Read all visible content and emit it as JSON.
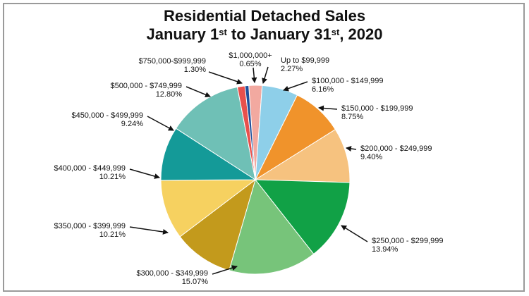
{
  "title_line1": "Residential Detached Sales",
  "title_line2": {
    "part1": "January 1",
    "sup1": "st",
    "part2": " to January 31",
    "sup2": "st",
    "part3": ", 2020"
  },
  "chart_data": {
    "type": "pie",
    "title": "Residential Detached Sales January 1st to January 31st, 2020",
    "slices": [
      {
        "label": "Up to $99,999",
        "value": 2.27,
        "display": "2.27%",
        "color": "#f2a9a0"
      },
      {
        "label": "$100,000 - $149,999",
        "value": 6.16,
        "display": "6.16%",
        "color": "#8ecfe9"
      },
      {
        "label": "$150,000 - $199,999",
        "value": 8.75,
        "display": "8.75%",
        "color": "#f0932b"
      },
      {
        "label": "$200,000 - $249,999",
        "value": 9.4,
        "display": "9.40%",
        "color": "#f6c27f"
      },
      {
        "label": "$250,000 - $299,999",
        "value": 13.94,
        "display": "13.94%",
        "color": "#11a146"
      },
      {
        "label": "$300,000 - $349,999",
        "value": 15.07,
        "display": "15.07%",
        "color": "#77c47a"
      },
      {
        "label": "$350,000 - $399,999",
        "value": 10.21,
        "display": "10.21%",
        "color": "#c39a1c"
      },
      {
        "label": "$400,000 - $449,999",
        "value": 10.21,
        "display": "10.21%",
        "color": "#f6d160"
      },
      {
        "label": "$450,000 - $499,999",
        "value": 9.24,
        "display": "9.24%",
        "color": "#149a98"
      },
      {
        "label": "$500,000 - $749,999",
        "value": 12.8,
        "display": "12.80%",
        "color": "#6fc0b6"
      },
      {
        "label": "$750,000-$999,999",
        "value": 1.3,
        "display": "1.30%",
        "color": "#e8504c"
      },
      {
        "label": "$1,000,000+",
        "value": 0.65,
        "display": "0.65%",
        "color": "#1f4f9a"
      }
    ]
  }
}
